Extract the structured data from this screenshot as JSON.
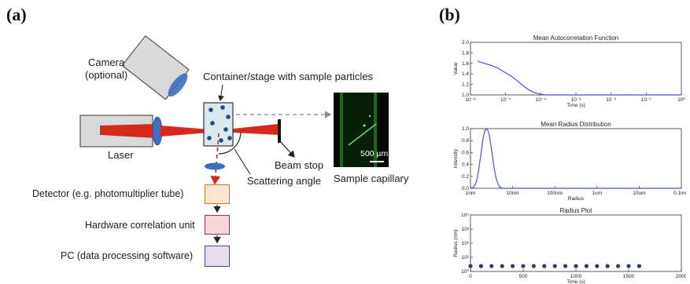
{
  "panels": {
    "a": "(a)",
    "b": "(b)"
  },
  "setup": {
    "camera": {
      "line1": "Camera",
      "line2": "(optional)"
    },
    "container": "Container/stage with sample particles",
    "laser": "Laser",
    "beam_stop": "Beam stop",
    "scattering_angle": "Scattering angle",
    "sample_capillary": "Sample capillary",
    "scale_bar": "500 µm",
    "detector": "Detector (e.g. photomultiplier tube)",
    "correlator": "Hardware correlation unit",
    "pc": "PC (data processing software)",
    "colors": {
      "laser_beam": "#d42a1e",
      "lens": "#3d6fbf",
      "detector_box": "#fde6cf",
      "correlator_box": "#f4d6d8",
      "pc_box": "#e6ddf0",
      "container": "#dbe9ef",
      "particle": "#1f4a86"
    }
  },
  "chart_data": [
    {
      "type": "line",
      "title": "Mean Autocorrelation Function",
      "xlabel": "Time (s)",
      "ylabel": "Value",
      "xscale": "log",
      "xlim": [
        1e-06,
        1
      ],
      "ylim": [
        1.0,
        2.0
      ],
      "xticks": [
        "10⁻⁶",
        "10⁻⁵",
        "10⁻⁴",
        "10⁻³",
        "10⁻²",
        "10⁻¹",
        "10⁰"
      ],
      "yticks": [
        "1.0",
        "1.2",
        "1.4",
        "1.6",
        "1.8",
        "2.0"
      ],
      "series": [
        {
          "color": "#4b55c8",
          "x": [
            1.6e-06,
            2.5e-06,
            4e-06,
            6e-06,
            8e-06,
            1.2e-05,
            1.8e-05,
            2.5e-05,
            3.5e-05,
            5e-05,
            7e-05,
            0.0001,
            0.00015,
            0.0003,
            0.001,
            0.01,
            0.1,
            1
          ],
          "y": [
            1.64,
            1.6,
            1.56,
            1.51,
            1.46,
            1.39,
            1.31,
            1.23,
            1.15,
            1.08,
            1.04,
            1.01,
            1.0,
            1.0,
            1.0,
            1.0,
            1.0,
            1.0
          ]
        }
      ]
    },
    {
      "type": "line",
      "title": "Mean Radius Distribution",
      "xlabel": "Radius",
      "ylabel": "Intensity",
      "xscale": "log",
      "xlim": [
        1e-09,
        0.0001
      ],
      "ylim": [
        0.0,
        1.0
      ],
      "xticks": [
        "1nm",
        "10nm",
        "100nm",
        "1um",
        "10um",
        "0.1mm"
      ],
      "yticks": [
        "0.0",
        "0.2",
        "0.4",
        "0.6",
        "0.8",
        "1.0"
      ],
      "series": [
        {
          "color": "#4b55c8",
          "x": [
            1e-09,
            1.2e-09,
            1.4e-09,
            1.6e-09,
            1.8e-09,
            2e-09,
            2.2e-09,
            2.4e-09,
            2.6e-09,
            2.8e-09,
            3e-09,
            3.3e-09,
            3.6e-09,
            4e-09,
            4.5e-09,
            5e-09,
            5.5e-09,
            6e-09,
            1e-08,
            1e-07,
            1e-06,
            1e-05,
            0.0001
          ],
          "y": [
            0.0,
            0.02,
            0.12,
            0.35,
            0.62,
            0.85,
            0.97,
            1.0,
            0.97,
            0.88,
            0.75,
            0.55,
            0.36,
            0.18,
            0.07,
            0.02,
            0.005,
            0.0,
            0.0,
            0.0,
            0.0,
            0.0,
            0.0
          ]
        }
      ]
    },
    {
      "type": "scatter",
      "title": "Radius Plot",
      "xlabel": "Time (s)",
      "ylabel": "Radius (nm)",
      "yscale": "log",
      "xlim": [
        0,
        2000
      ],
      "ylim": [
        1,
        10000
      ],
      "xticks": [
        "0",
        "500",
        "1000",
        "1500",
        "2000"
      ],
      "yticks": [
        "10⁰",
        "10¹",
        "10²",
        "10³",
        "10⁴"
      ],
      "series": [
        {
          "color": "#2c3a7a",
          "x": [
            0,
            100,
            200,
            300,
            400,
            500,
            600,
            700,
            800,
            900,
            1000,
            1100,
            1200,
            1300,
            1400,
            1500,
            1600
          ],
          "y": [
            2.4,
            2.4,
            2.4,
            2.4,
            2.4,
            2.4,
            2.4,
            2.4,
            2.4,
            2.4,
            2.4,
            2.4,
            2.4,
            2.4,
            2.4,
            2.4,
            2.4
          ]
        }
      ]
    }
  ]
}
